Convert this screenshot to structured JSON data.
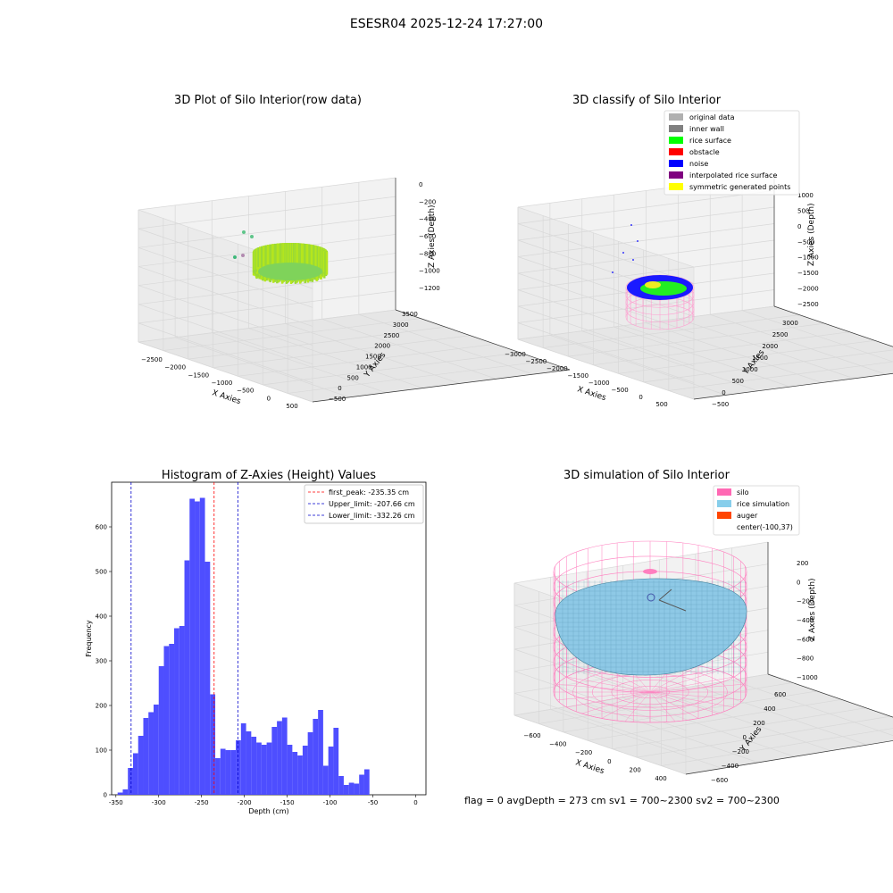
{
  "suptitle": "ESESR04 2025-12-24 17:27:00",
  "status_line": "flag = 0     avgDepth = 273 cm  sv1 = 700~2300  sv2 = 700~2300",
  "colors": {
    "hist_bar": "#4444ff",
    "first_peak": "#ff0000",
    "limits": "#0000cc",
    "rice_surface": "#00ff00",
    "noise": "#0000ff",
    "silo_pink": "#ff69b4",
    "rice_sim": "#87ceeb"
  },
  "chart_data": [
    {
      "id": "raw",
      "type": "scatter",
      "title": "3D Plot of Silo Interior(row data)",
      "xlabel": "X Axies",
      "ylabel": "Y Axies",
      "zlabel": "Z Axies (Depth)",
      "x_ticks": [
        "−2500",
        "−2000",
        "−1500",
        "−1000",
        "−500",
        "0",
        "500"
      ],
      "y_ticks": [
        "−500",
        "0",
        "500",
        "1000",
        "1500",
        "2000",
        "2500",
        "3000",
        "3500"
      ],
      "z_ticks": [
        "0",
        "−200",
        "−400",
        "−600",
        "−800",
        "−1000",
        "−1200"
      ]
    },
    {
      "id": "classify",
      "type": "scatter",
      "title": "3D classify of Silo Interior",
      "xlabel": "X Axies",
      "ylabel": "Y Axies",
      "zlabel": "Z Axies (Depth)",
      "x_ticks": [
        "−3000",
        "−2500",
        "−2000",
        "−1500",
        "−1000",
        "−500",
        "0",
        "500"
      ],
      "y_ticks": [
        "−500",
        "0",
        "500",
        "1000",
        "1500",
        "2000",
        "2500",
        "3000"
      ],
      "z_ticks": [
        "1000",
        "500",
        "0",
        "−500",
        "−1000",
        "−1500",
        "−2000",
        "−2500"
      ],
      "legend": [
        {
          "label": "original data",
          "color": "#b0b0b0"
        },
        {
          "label": "inner wall",
          "color": "#808080"
        },
        {
          "label": "rice surface",
          "color": "#00ff00"
        },
        {
          "label": "obstacle",
          "color": "#ff0000"
        },
        {
          "label": "noise",
          "color": "#0000ff"
        },
        {
          "label": "interpolated rice surface",
          "color": "#800080"
        },
        {
          "label": "symmetric generated points",
          "color": "#ffff00"
        }
      ],
      "legend_position": "top-right"
    },
    {
      "id": "hist",
      "type": "bar",
      "title": "Histogram of Z-Axies (Height) Values",
      "xlabel": "Depth (cm)",
      "ylabel": "Frequency",
      "xlim": [
        -355,
        12
      ],
      "ylim": [
        0,
        700
      ],
      "x_ticks": [
        -350,
        -300,
        -250,
        -200,
        -150,
        -100,
        -50,
        0
      ],
      "y_ticks": [
        0,
        100,
        200,
        300,
        400,
        500,
        600
      ],
      "bin_start": -348,
      "bin_width": 6,
      "values": [
        5,
        12,
        60,
        93,
        132,
        172,
        185,
        202,
        288,
        333,
        338,
        373,
        378,
        525,
        663,
        657,
        665,
        522,
        225,
        82,
        103,
        100,
        100,
        122,
        160,
        142,
        130,
        117,
        112,
        117,
        152,
        165,
        173,
        112,
        96,
        88,
        110,
        140,
        170,
        190,
        65,
        108,
        150,
        42,
        22,
        27,
        25,
        45,
        57
      ],
      "lines": [
        {
          "label": "first_peak: -235.35 cm",
          "x": -235.35,
          "color": "#ff0000"
        },
        {
          "label": "Upper_limit: -207.66 cm",
          "x": -207.66,
          "color": "#0000cc"
        },
        {
          "label": "Lower_limit: -332.26 cm",
          "x": -332.26,
          "color": "#0000cc"
        }
      ],
      "legend_position": "top-right"
    },
    {
      "id": "sim",
      "type": "scatter",
      "title": "3D simulation of Silo Interior",
      "xlabel": "X Axies",
      "ylabel": "Y Axies",
      "zlabel": "Z Axies (Depth)",
      "x_ticks": [
        "−600",
        "−400",
        "−200",
        "0",
        "200",
        "400"
      ],
      "y_ticks": [
        "−600",
        "−400",
        "−200",
        "0",
        "200",
        "400",
        "600"
      ],
      "z_ticks": [
        "200",
        "0",
        "−200",
        "−400",
        "−600",
        "−800",
        "−1000"
      ],
      "legend": [
        {
          "label": "silo",
          "color": "#ff69b4"
        },
        {
          "label": "rice simulation",
          "color": "#87ceeb"
        },
        {
          "label": "auger",
          "color": "#ff4500"
        },
        {
          "label": "center(-100,37)",
          "color": ""
        }
      ],
      "legend_position": "top-right"
    }
  ]
}
